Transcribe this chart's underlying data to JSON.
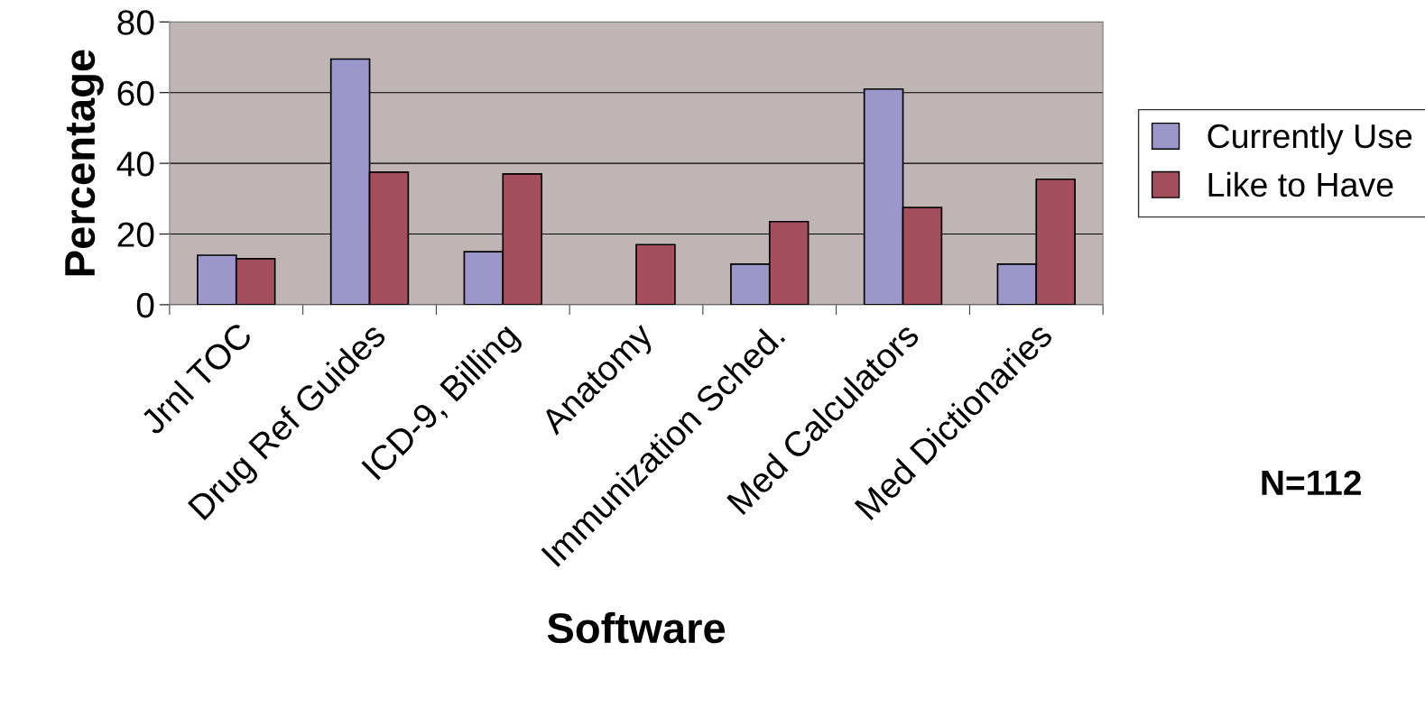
{
  "chart_data": {
    "type": "bar",
    "xlabel": "Software",
    "ylabel": "Percentage",
    "categories": [
      "Jrnl TOC",
      "Drug Ref Guides",
      "ICD-9, Billing",
      "Anatomy",
      "Immunization Sched.",
      "Med Calculators",
      "Med Dictionaries"
    ],
    "series": [
      {
        "name": "Currently Use",
        "color": "#9b97cb",
        "values": [
          14,
          69.5,
          15,
          null,
          11.5,
          61,
          11.5
        ]
      },
      {
        "name": "Like to Have",
        "color": "#a64f5c",
        "values": [
          13,
          37.5,
          37,
          17,
          23.5,
          27.5,
          35.5
        ]
      }
    ],
    "ylim": [
      0,
      80
    ],
    "yticks": [
      0,
      20,
      40,
      60,
      80
    ],
    "grid": "y",
    "legend": "right",
    "annotations": [
      "N=112"
    ]
  }
}
